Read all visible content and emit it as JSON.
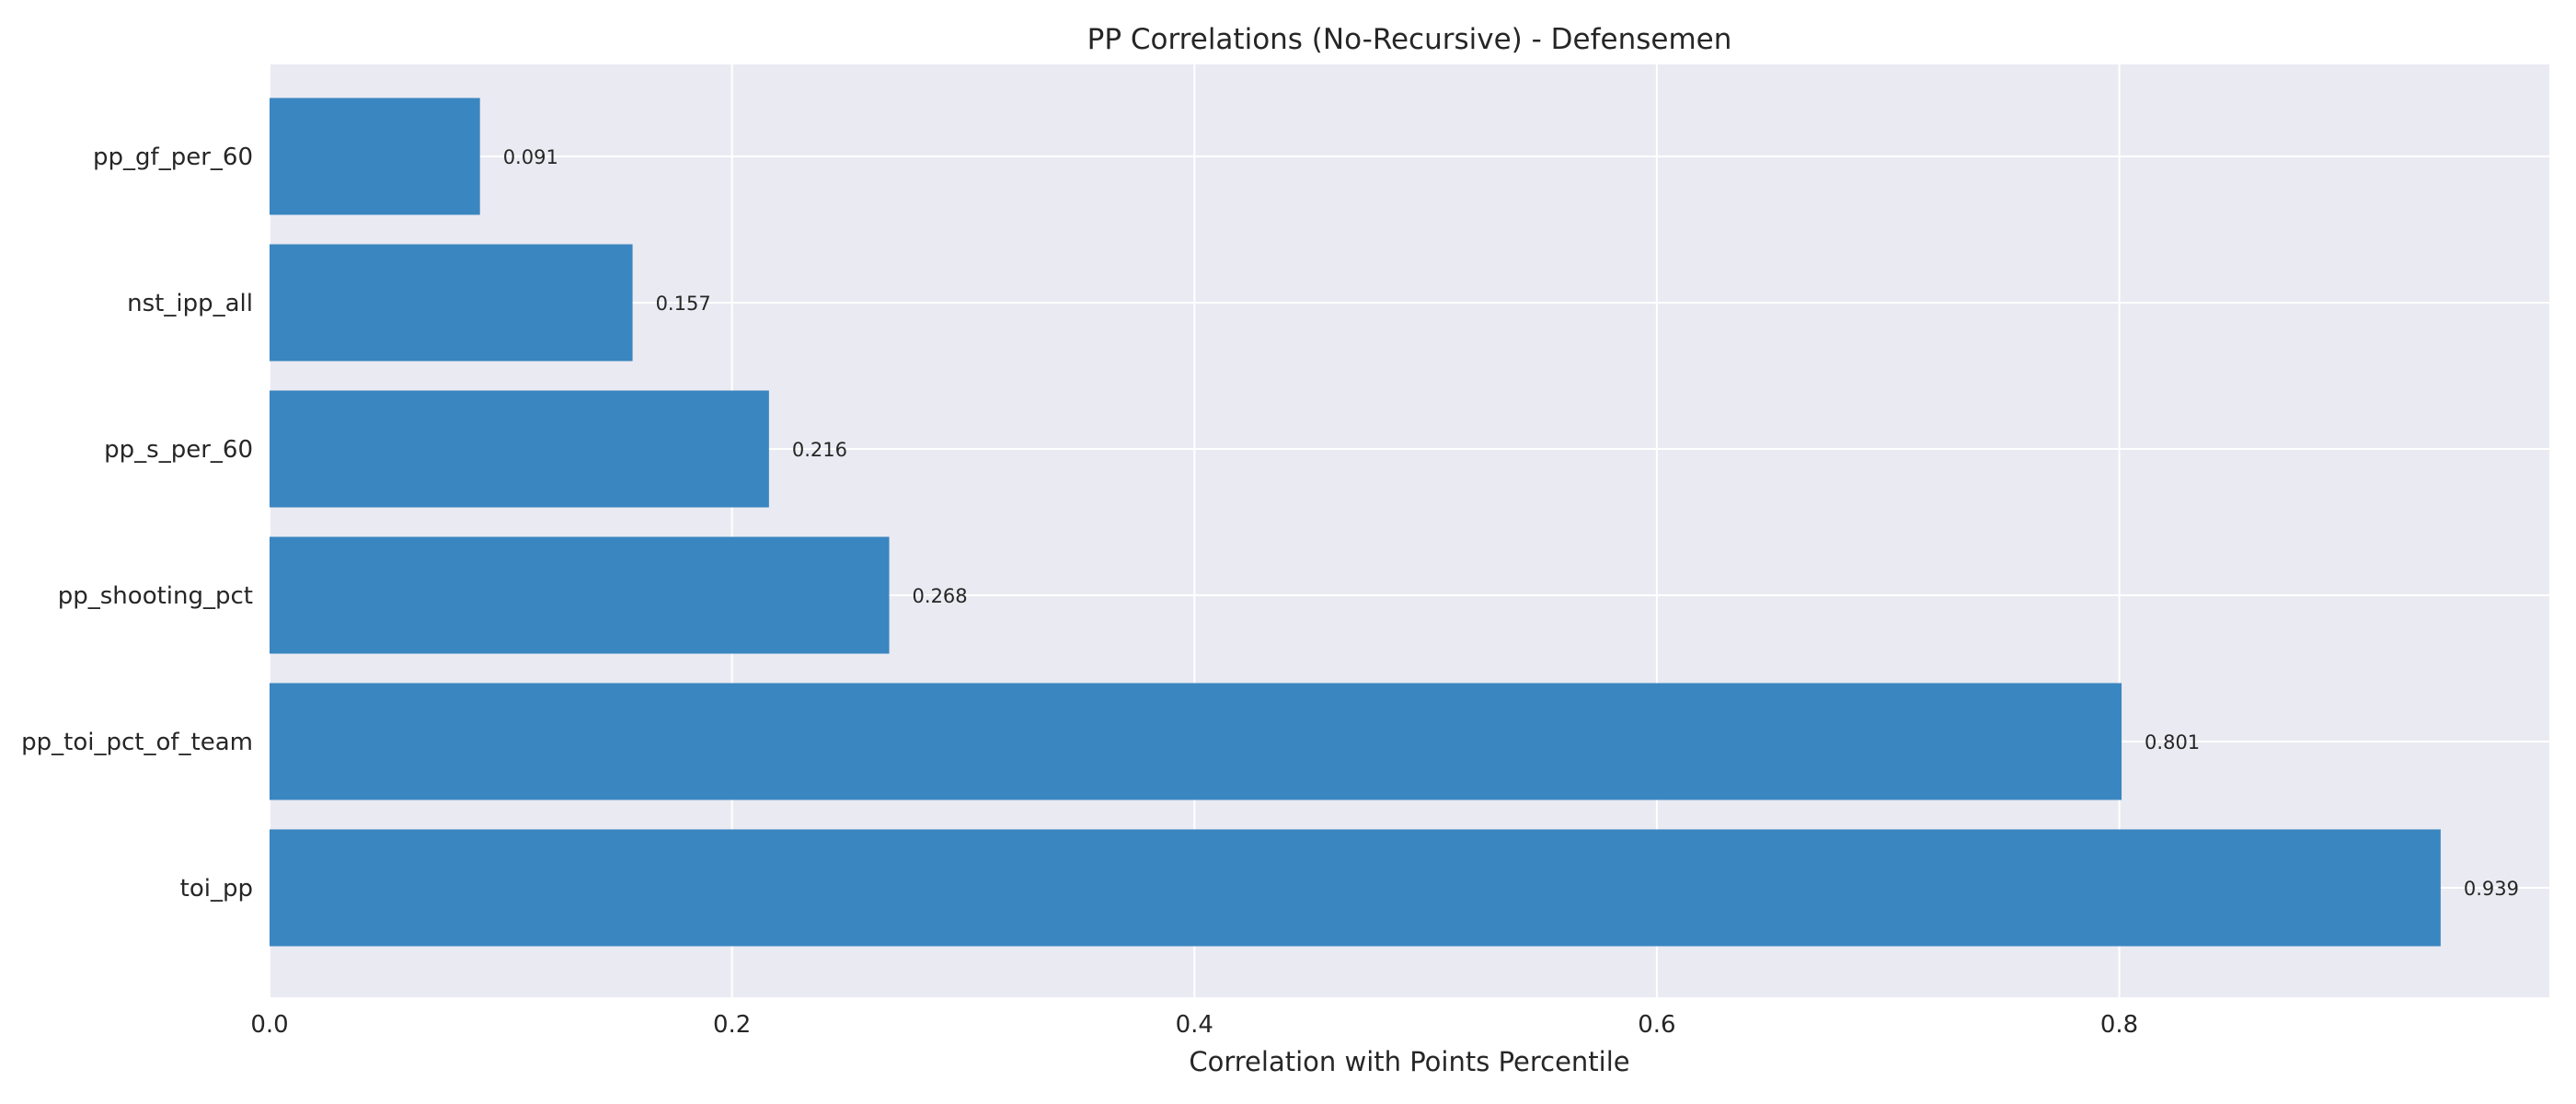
{
  "chart_data": {
    "type": "bar",
    "orientation": "horizontal",
    "title": "PP Correlations (No-Recursive) - Defensemen",
    "xlabel": "Correlation with Points Percentile",
    "ylabel": "",
    "categories": [
      "toi_pp",
      "pp_toi_pct_of_team",
      "pp_shooting_pct",
      "pp_s_per_60",
      "nst_ipp_all",
      "pp_gf_per_60"
    ],
    "values": [
      0.939,
      0.801,
      0.268,
      0.216,
      0.157,
      0.091
    ],
    "value_labels": [
      "0.939",
      "0.801",
      "0.268",
      "0.216",
      "0.157",
      "0.091"
    ],
    "xlim": [
      0,
      0.986
    ],
    "xticks": [
      0.0,
      0.2,
      0.4,
      0.6,
      0.8
    ],
    "xtick_labels": [
      "0.0",
      "0.2",
      "0.4",
      "0.6",
      "0.8"
    ],
    "grid": true,
    "legend": "none",
    "colors": {
      "bar": "#3a86c0",
      "plot_background": "#eaeaf2",
      "grid": "#ffffff",
      "text": "#262626"
    }
  }
}
